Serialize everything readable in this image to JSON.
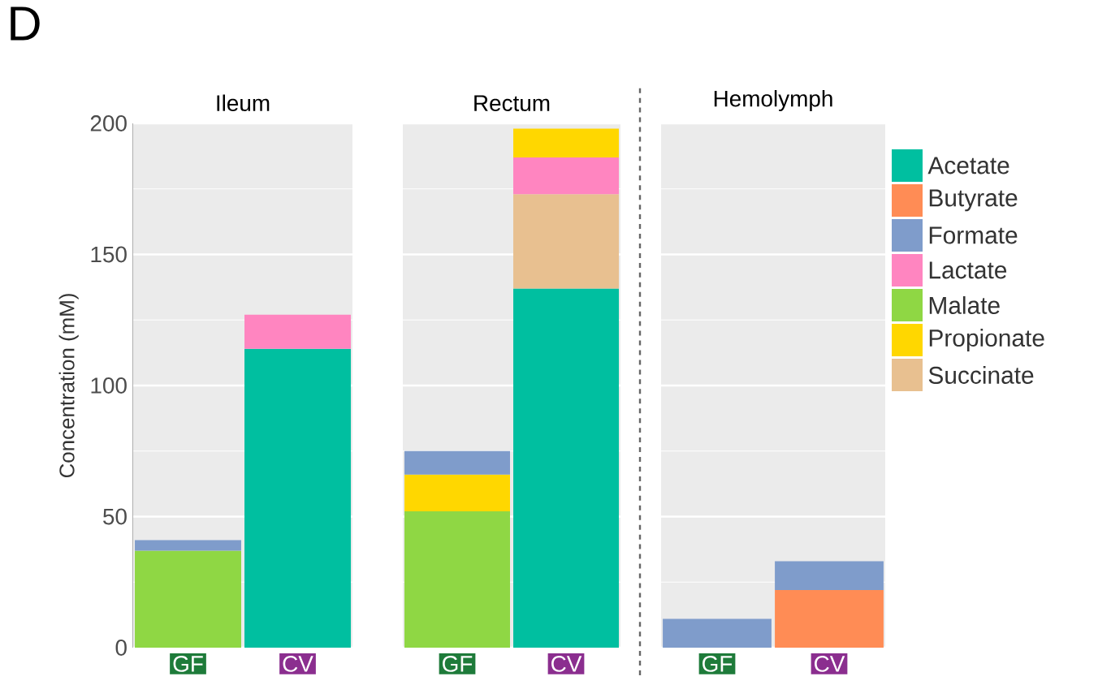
{
  "chart_data": [
    {
      "type": "bar",
      "stacked": true,
      "title": "Ileum",
      "ylabel": "Concentration (mM)",
      "annotations": [
        "D"
      ],
      "categories": [
        "GF",
        "CV"
      ],
      "ylim": [
        0,
        200
      ],
      "yticks": [
        0,
        50,
        100,
        150,
        200
      ],
      "grid": "y",
      "series": [
        {
          "color": "#00bfa0",
          "values": [
            null,
            114
          ]
        },
        {
          "color": "#8fd744",
          "values": [
            37,
            null
          ]
        },
        {
          "color": "#ff85c0",
          "values": [
            null,
            13
          ]
        },
        {
          "color": "#7f9ccb",
          "values": [
            4,
            null
          ]
        }
      ]
    },
    {
      "type": "bar",
      "stacked": true,
      "title": "Rectum",
      "categories": [
        "GF",
        "CV"
      ],
      "ylim": [
        0,
        200
      ],
      "yticks": [
        0,
        50,
        100,
        150,
        200
      ],
      "grid": "y",
      "tick_labels": "x",
      "series": [
        {
          "color": "#00bfa0",
          "values": [
            null,
            137
          ]
        },
        {
          "color": "#8fd744",
          "values": [
            52,
            null
          ]
        },
        {
          "color": "#e8c090",
          "values": [
            null,
            36
          ]
        },
        {
          "color": "#ff85c0",
          "values": [
            null,
            14
          ]
        },
        {
          "color": "#ffd700",
          "values": [
            14,
            11
          ]
        },
        {
          "color": "#7f9ccb",
          "values": [
            9,
            null
          ]
        }
      ]
    },
    {
      "type": "bar",
      "stacked": true,
      "title": "Hemolymph",
      "categories": [
        "GF",
        "CV"
      ],
      "ylim": [
        0,
        200
      ],
      "yticks": [
        0,
        50,
        100,
        150,
        200
      ],
      "grid": "y",
      "tick_labels": "x",
      "legend": "right",
      "series": [
        {
          "name": "Acetate",
          "color": "#00bfa0",
          "values": [
            null,
            null
          ]
        },
        {
          "name": "Butyrate",
          "color": "#ff8c55",
          "values": [
            null,
            22
          ]
        },
        {
          "name": "Formate",
          "color": "#7f9ccb",
          "values": [
            11,
            11
          ]
        },
        {
          "name": "Lactate",
          "color": "#ff85c0",
          "values": [
            null,
            null
          ]
        },
        {
          "name": "Malate",
          "color": "#8fd744",
          "values": [
            null,
            null
          ]
        },
        {
          "name": "Propionate",
          "color": "#ffd700",
          "values": [
            null,
            null
          ]
        },
        {
          "name": "Succinate",
          "color": "#e8c090",
          "values": [
            null,
            null
          ]
        }
      ]
    }
  ]
}
